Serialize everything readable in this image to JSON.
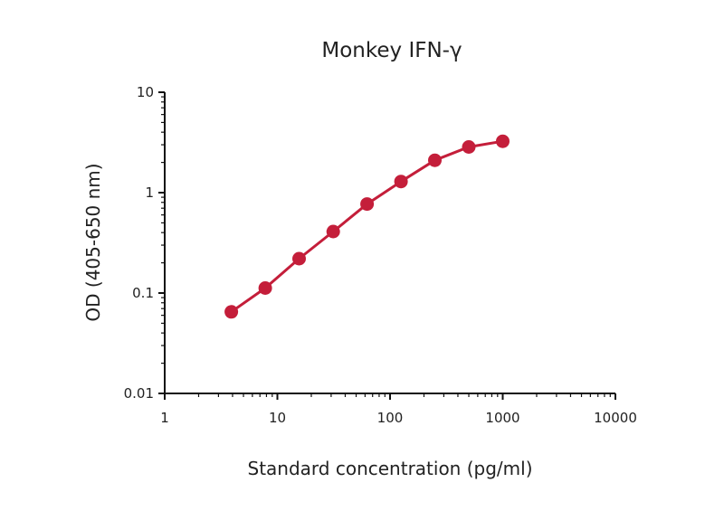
{
  "chart_data": {
    "type": "line",
    "title": "Monkey IFN-γ",
    "xlabel": "Standard concentration (pg/ml)",
    "ylabel": "OD (405-650 nm)",
    "xscale": "log",
    "yscale": "log",
    "xlim": [
      1,
      10000
    ],
    "ylim": [
      0.01,
      10
    ],
    "xticks": [
      "1",
      "10",
      "100",
      "1000",
      "10000"
    ],
    "yticks": [
      "0.01",
      "0.1",
      "1",
      "10"
    ],
    "grid": false,
    "series": [
      {
        "color": "#c41e3a",
        "x": [
          3.9,
          7.8,
          15.6,
          31.3,
          62.5,
          125,
          250,
          500,
          1000
        ],
        "y": [
          0.065,
          0.112,
          0.22,
          0.41,
          0.77,
          1.29,
          2.1,
          2.85,
          3.25
        ]
      }
    ]
  }
}
